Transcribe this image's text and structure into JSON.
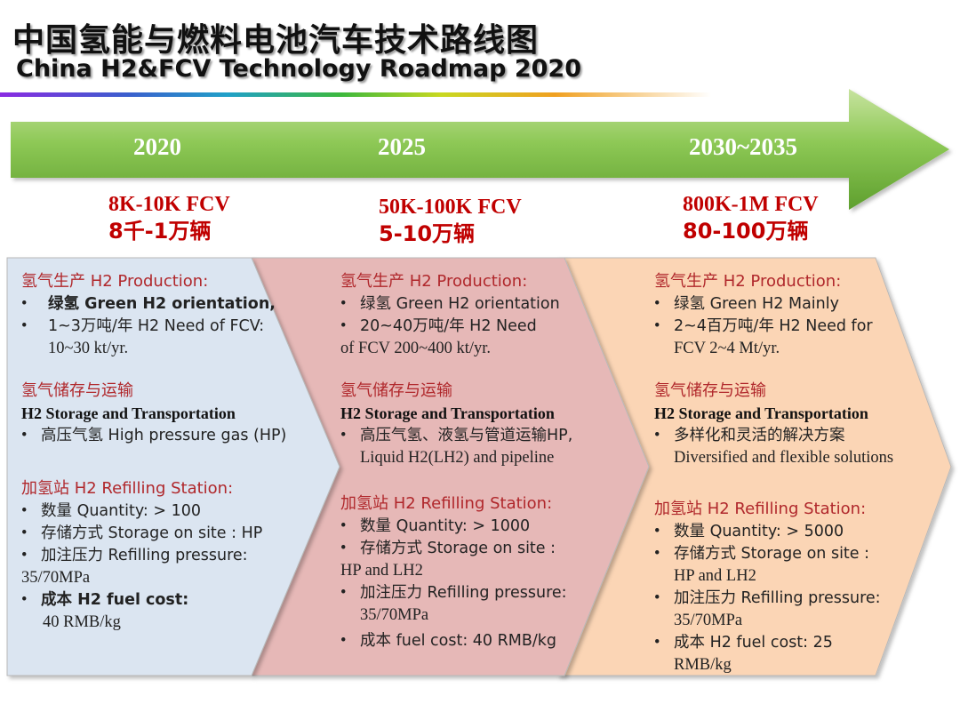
{
  "title_cn": "中国氢能与燃料电池汽车技术路线图",
  "title_en": "China H2&FCV Technology Roadmap 2020",
  "colors": {
    "arrow_green": "#7dbf46",
    "panel_blue": "#dbe5f1",
    "panel_pink": "#e6b8b7",
    "panel_orange": "#fbd5b5",
    "accent_red": "#c00000"
  },
  "stages": [
    {
      "year": "2020",
      "fcv_en": "8K-10K FCV",
      "fcv_cn": "8千-1万辆",
      "production_heading": "氢气生产 H2 Production:",
      "production_items": [
        "绿氢 Green H2 orientation,",
        "1~3万吨/年 H2 Need of FCV:",
        "10~30 kt/yr."
      ],
      "storage_heading_cn": "氢气储存与运输",
      "storage_heading_en": "H2 Storage and Transportation",
      "storage_items": [
        "高压气氢 High pressure gas (HP)"
      ],
      "refilling_heading": "加氢站 H2 Refilling Station:",
      "refilling_items": [
        "数量 Quantity: > 100",
        "存储方式 Storage on site : HP",
        "加注压力 Refilling pressure:",
        "35/70MPa",
        "成本 H2 fuel cost:",
        "40 RMB/kg"
      ]
    },
    {
      "year": "2025",
      "fcv_en": "50K-100K FCV",
      "fcv_cn": "5-10万辆",
      "production_heading": "氢气生产 H2 Production:",
      "production_items": [
        "绿氢 Green H2 orientation",
        "20~40万吨/年 H2 Need",
        "of FCV 200~400 kt/yr."
      ],
      "storage_heading_cn": "氢气储存与运输",
      "storage_heading_en": "H2 Storage and Transportation",
      "storage_items": [
        "高压气氢、液氢与管道运输HP,",
        "Liquid H2(LH2) and pipeline"
      ],
      "refilling_heading": "加氢站 H2 Refilling Station:",
      "refilling_items": [
        "数量 Quantity: > 1000",
        "存储方式 Storage on site :",
        "HP and LH2",
        "加注压力 Refilling pressure:",
        "35/70MPa",
        "成本 fuel cost: 40 RMB/kg"
      ]
    },
    {
      "year": "2030~2035",
      "fcv_en": "800K-1M FCV",
      "fcv_cn": "80-100万辆",
      "production_heading": "氢气生产 H2 Production:",
      "production_items": [
        "绿氢 Green H2 Mainly",
        "2~4百万吨/年 H2 Need for",
        "FCV 2~4 Mt/yr."
      ],
      "storage_heading_cn": "氢气储存与运输",
      "storage_heading_en": "H2 Storage and Transportation",
      "storage_items": [
        "多样化和灵活的解决方案",
        "Diversified and flexible solutions"
      ],
      "refilling_heading": "加氢站 H2 Refilling Station:",
      "refilling_items": [
        "数量 Quantity: > 5000",
        "存储方式 Storage on site :",
        "HP and LH2",
        "加注压力 Refilling pressure:",
        "35/70MPa",
        "成本 H2 fuel cost: 25",
        "RMB/kg"
      ]
    }
  ]
}
